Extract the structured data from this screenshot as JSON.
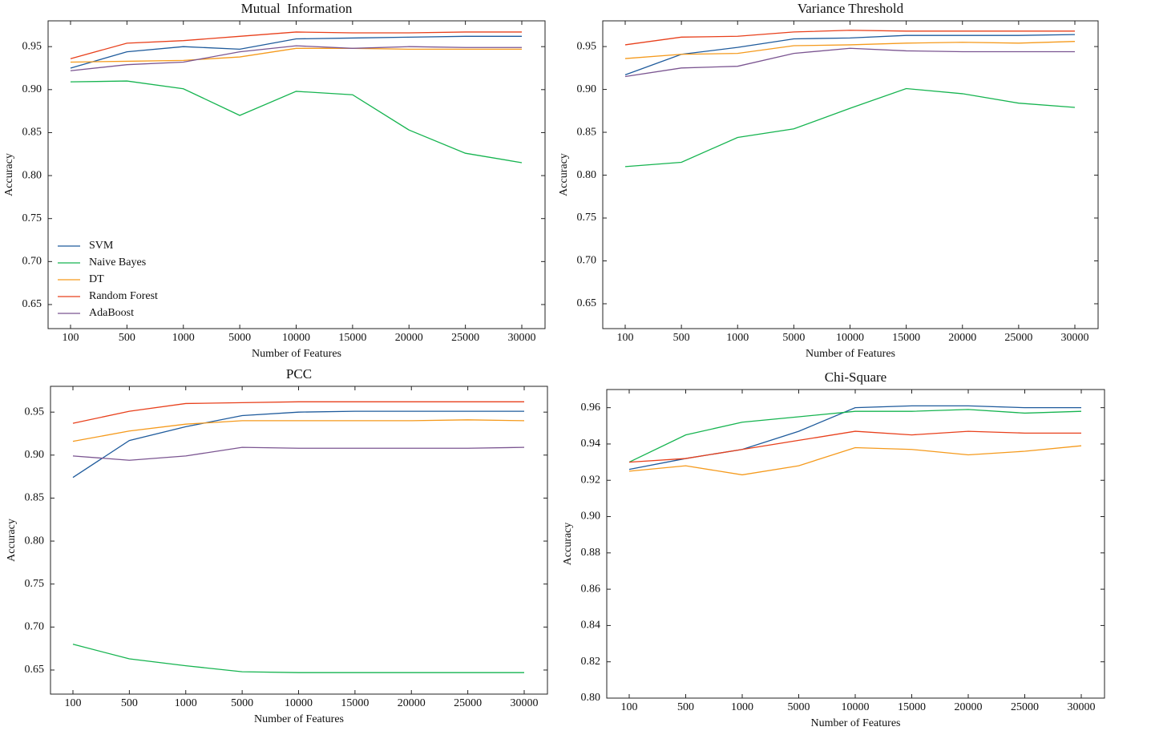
{
  "chart_data": [
    {
      "type": "line",
      "title": "Mutual  Information",
      "xlabel": "Number of Features",
      "ylabel": "Accuracy",
      "categories": [
        "100",
        "500",
        "1000",
        "5000",
        "10000",
        "15000",
        "20000",
        "25000",
        "30000"
      ],
      "ylim": [
        0.622,
        0.98
      ],
      "yticks": [
        0.65,
        {
          "value": 0.7,
          "label": "0.70"
        },
        0.75,
        {
          "value": 0.8,
          "label": "0.80"
        },
        0.85,
        {
          "value": 0.9,
          "label": "0.90"
        },
        0.95
      ],
      "legend": "lower left",
      "series": [
        {
          "name": "SVM",
          "color": "#1f5b9c",
          "values": [
            0.925,
            0.944,
            0.95,
            0.947,
            0.959,
            0.96,
            0.961,
            0.962,
            0.962
          ]
        },
        {
          "name": "Naive Bayes",
          "color": "#16b450",
          "values": [
            0.909,
            0.91,
            0.901,
            0.87,
            0.898,
            0.894,
            0.853,
            0.826,
            0.815
          ]
        },
        {
          "name": "DT",
          "color": "#f59a1c",
          "values": [
            0.932,
            0.933,
            0.934,
            0.938,
            0.948,
            0.948,
            0.947,
            0.947,
            0.947
          ]
        },
        {
          "name": "Random Forest",
          "color": "#e8401c",
          "values": [
            0.936,
            0.954,
            0.957,
            0.962,
            0.967,
            0.966,
            0.966,
            0.967,
            0.967
          ]
        },
        {
          "name": "AdaBoost",
          "color": "#7b5591",
          "values": [
            0.922,
            0.929,
            0.932,
            0.944,
            0.951,
            0.948,
            0.95,
            0.949,
            0.949
          ]
        }
      ]
    },
    {
      "type": "line",
      "title": "Variance Threshold",
      "xlabel": "Number of Features",
      "ylabel": "Accuracy",
      "categories": [
        "100",
        "500",
        "1000",
        "5000",
        "10000",
        "15000",
        "20000",
        "25000",
        "30000"
      ],
      "ylim": [
        0.621,
        0.98
      ],
      "yticks": [
        0.65,
        {
          "value": 0.7,
          "label": "0.70"
        },
        0.75,
        {
          "value": 0.8,
          "label": "0.80"
        },
        0.85,
        {
          "value": 0.9,
          "label": "0.90"
        },
        0.95
      ],
      "series": [
        {
          "color": "#1f5b9c",
          "values": [
            0.917,
            0.941,
            0.949,
            0.959,
            0.96,
            0.963,
            0.963,
            0.963,
            0.964
          ]
        },
        {
          "color": "#16b450",
          "values": [
            0.81,
            0.815,
            0.844,
            0.854,
            0.878,
            0.901,
            0.895,
            0.884,
            0.879
          ]
        },
        {
          "color": "#f59a1c",
          "values": [
            0.936,
            0.941,
            0.942,
            0.951,
            0.952,
            0.954,
            0.955,
            0.954,
            0.956
          ]
        },
        {
          "color": "#e8401c",
          "values": [
            0.952,
            0.961,
            0.962,
            0.967,
            0.969,
            0.968,
            0.968,
            0.968,
            0.968
          ]
        },
        {
          "color": "#7b5591",
          "values": [
            0.915,
            0.925,
            0.927,
            0.942,
            0.948,
            0.945,
            0.944,
            0.944,
            0.944
          ]
        }
      ]
    },
    {
      "type": "line",
      "title": "PCC",
      "xlabel": "Number of Features",
      "ylabel": "Accuracy",
      "categories": [
        "100",
        "500",
        "1000",
        "5000",
        "10000",
        "15000",
        "20000",
        "25000",
        "30000"
      ],
      "ylim": [
        0.622,
        0.98
      ],
      "yticks": [
        0.65,
        {
          "value": 0.7,
          "label": "0.70"
        },
        0.75,
        {
          "value": 0.8,
          "label": "0.80"
        },
        0.85,
        {
          "value": 0.9,
          "label": "0.90"
        },
        0.95
      ],
      "series": [
        {
          "color": "#1f5b9c",
          "values": [
            0.874,
            0.917,
            0.933,
            0.946,
            0.95,
            0.951,
            0.951,
            0.951,
            0.951
          ]
        },
        {
          "color": "#16b450",
          "values": [
            0.68,
            0.663,
            0.655,
            0.648,
            0.647,
            0.647,
            0.647,
            0.647,
            0.647
          ]
        },
        {
          "color": "#f59a1c",
          "values": [
            0.916,
            0.928,
            0.936,
            0.94,
            0.94,
            0.94,
            0.94,
            0.941,
            0.94
          ]
        },
        {
          "color": "#e8401c",
          "values": [
            0.937,
            0.951,
            0.96,
            0.961,
            0.962,
            0.962,
            0.962,
            0.962,
            0.962
          ]
        },
        {
          "color": "#7b5591",
          "values": [
            0.899,
            0.894,
            0.899,
            0.909,
            0.908,
            0.908,
            0.908,
            0.908,
            0.909
          ]
        }
      ]
    },
    {
      "type": "line",
      "title": "Chi-Square",
      "xlabel": "Number of Features",
      "ylabel": "Accuracy",
      "categories": [
        "100",
        "500",
        "1000",
        "5000",
        "10000",
        "15000",
        "20000",
        "25000",
        "30000"
      ],
      "ylim": [
        0.8,
        0.97
      ],
      "yticks": [
        {
          "value": 0.8,
          "label": "0.80"
        },
        0.82,
        0.84,
        0.86,
        0.88,
        {
          "value": 0.9,
          "label": "0.90"
        },
        0.92,
        0.94,
        0.96
      ],
      "series": [
        {
          "color": "#1f5b9c",
          "values": [
            0.926,
            0.932,
            0.937,
            0.947,
            0.96,
            0.961,
            0.961,
            0.96,
            0.96
          ]
        },
        {
          "color": "#16b450",
          "values": [
            0.93,
            0.945,
            0.952,
            0.955,
            0.958,
            0.958,
            0.959,
            0.957,
            0.958
          ]
        },
        {
          "color": "#f59a1c",
          "values": [
            0.925,
            0.928,
            0.923,
            0.928,
            0.938,
            0.937,
            0.934,
            0.936,
            0.939
          ]
        },
        {
          "color": "#e8401c",
          "values": [
            0.93,
            0.932,
            0.937,
            0.942,
            0.947,
            0.945,
            0.947,
            0.946,
            0.946
          ]
        }
      ]
    }
  ]
}
